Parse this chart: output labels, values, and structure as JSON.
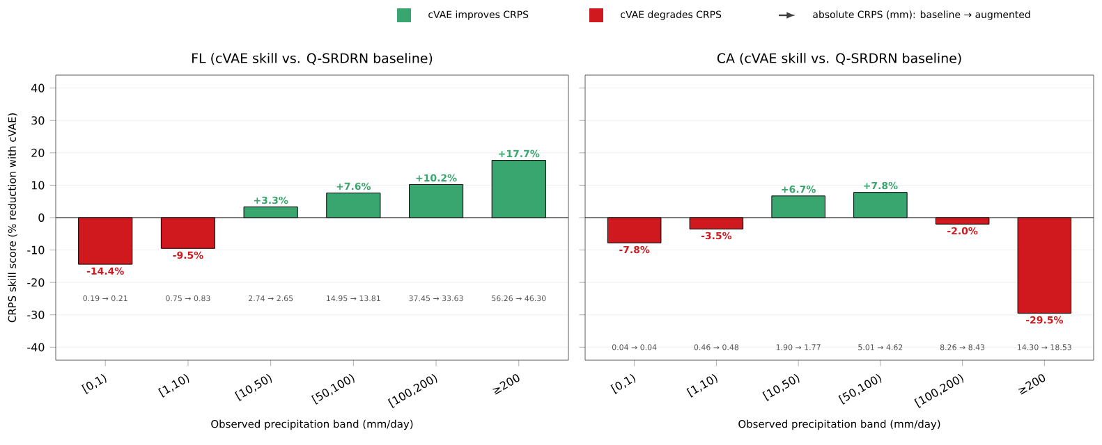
{
  "chart_data": [
    {
      "type": "bar",
      "title": "FL  (cVAE skill vs. Q-SRDRN baseline)",
      "xlabel": "Observed precipitation band (mm/day)",
      "ylabel": "CRPS skill score  (% reduction with cVAE)",
      "categories": [
        "[0,1)",
        "[1,10)",
        "[10,50)",
        "[50,100)",
        "[100,200)",
        "≥200"
      ],
      "series": [
        {
          "name": "cVAE improves CRPS",
          "color": "#3aa66f",
          "values": [
            null,
            null,
            3.3,
            7.6,
            10.2,
            17.7
          ],
          "value_labels": [
            null,
            null,
            "+3.3%",
            "+7.6%",
            "+10.2%",
            "+17.7%"
          ]
        },
        {
          "name": "cVAE degrades CRPS",
          "color": "#d0191f",
          "values": [
            -14.4,
            -9.5,
            null,
            null,
            null,
            null
          ],
          "value_labels": [
            "-14.4%",
            "-9.5%",
            null,
            null,
            null,
            null
          ]
        }
      ],
      "ylim": [
        -44,
        44
      ],
      "yticks": [
        -40,
        -30,
        -20,
        -10,
        0,
        10,
        20,
        30,
        40
      ],
      "grid": "y",
      "legend": "top",
      "annotations": [
        "0.19 → 0.21",
        "0.75 → 0.83",
        "2.74 → 2.65",
        "14.95 → 13.81",
        "37.45 → 33.63",
        "56.26 → 46.30",
        "absolute CRPS (mm): baseline → augmented"
      ]
    },
    {
      "type": "bar",
      "title": "CA  (cVAE skill vs. Q-SRDRN baseline)",
      "xlabel": "Observed precipitation band (mm/day)",
      "categories": [
        "[0,1)",
        "[1,10)",
        "[10,50)",
        "[50,100)",
        "[100,200)",
        "≥200"
      ],
      "series": [
        {
          "color": "#3aa66f",
          "values": [
            null,
            null,
            6.7,
            7.8,
            null,
            null
          ],
          "value_labels": [
            null,
            null,
            "+6.7%",
            "+7.8%",
            null,
            null
          ]
        },
        {
          "color": "#d0191f",
          "values": [
            -7.8,
            -3.5,
            null,
            null,
            -2.0,
            -29.5
          ],
          "value_labels": [
            "-7.8%",
            "-3.5%",
            null,
            null,
            "-2.0%",
            "-29.5%"
          ]
        }
      ],
      "ylim": [
        -44,
        44
      ],
      "yticks": [
        -40,
        -30,
        -20,
        -10,
        0,
        10,
        20,
        30,
        40
      ],
      "grid": "y",
      "tick_labels": "x",
      "annotations": [
        "0.04 → 0.04",
        "0.46 → 0.48",
        "1.90 → 1.77",
        "5.01 → 4.62",
        "8.26 → 8.43",
        "14.30 → 18.53"
      ]
    }
  ]
}
